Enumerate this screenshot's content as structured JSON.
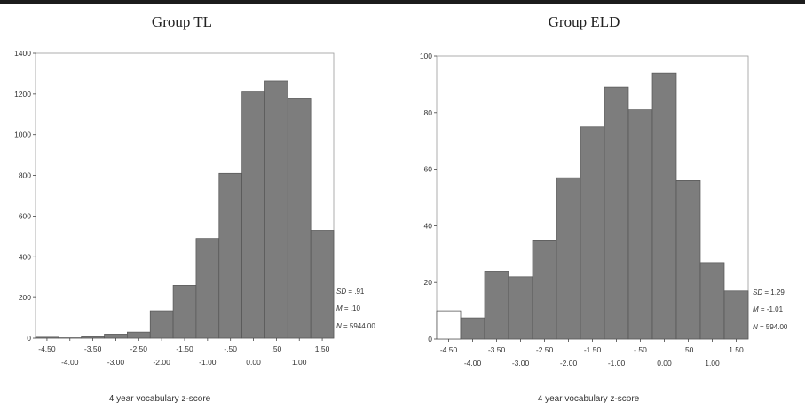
{
  "chart_data": [
    {
      "type": "bar",
      "title": "Group TL",
      "xlabel": "4 year vocabulary z-score",
      "ylabel": "",
      "ylim": [
        0,
        1400
      ],
      "yticks": [
        "0",
        "200",
        "400",
        "600",
        "800",
        "1000",
        "1200",
        "1400"
      ],
      "xticks_upper": [
        "-4.50",
        "-3.50",
        "-2.50",
        "-1.50",
        "-.50",
        ".50",
        "1.50"
      ],
      "xticks_lower": [
        "-4.00",
        "-3.00",
        "-2.00",
        "-1.00",
        "0.00",
        "1.00"
      ],
      "bin_centers": [
        -4.5,
        -4.0,
        -3.5,
        -3.0,
        -2.5,
        -2.0,
        -1.5,
        -1.0,
        -0.5,
        0.0,
        0.5,
        1.0,
        1.5
      ],
      "values": [
        5,
        2,
        8,
        20,
        30,
        135,
        260,
        490,
        810,
        1210,
        1265,
        1180,
        530
      ],
      "stats": {
        "sd_label": "SD",
        "sd": ".91",
        "m_label": "M",
        "m": ".10",
        "n_label": "N",
        "n": "5944.00"
      },
      "bar_color": "#7d7d7d"
    },
    {
      "type": "bar",
      "title": "Group ELD",
      "xlabel": "4 year vocabulary z-score",
      "ylabel": "",
      "ylim": [
        0,
        100
      ],
      "yticks": [
        "0",
        "20",
        "40",
        "60",
        "80",
        "100"
      ],
      "xticks_upper": [
        "-4.50",
        "-3.50",
        "-2.50",
        "-1.50",
        "-.50",
        ".50",
        "1.50"
      ],
      "xticks_lower": [
        "-4.00",
        "-3.00",
        "-2.00",
        "-1.00",
        "0.00",
        "1.00"
      ],
      "bin_centers": [
        -4.5,
        -4.0,
        -3.5,
        -3.0,
        -2.5,
        -2.0,
        -1.5,
        -1.0,
        -0.5,
        0.0,
        0.5,
        1.0,
        1.5
      ],
      "values": [
        10,
        7.5,
        24,
        22,
        35,
        57,
        75,
        89,
        81,
        94,
        56,
        27,
        17
      ],
      "hollow_bins": [
        0
      ],
      "stats": {
        "sd_label": "SD",
        "sd": "1.29",
        "m_label": "M",
        "m": "-1.01",
        "n_label": "N",
        "n": "594.00"
      },
      "bar_color": "#7d7d7d"
    }
  ]
}
